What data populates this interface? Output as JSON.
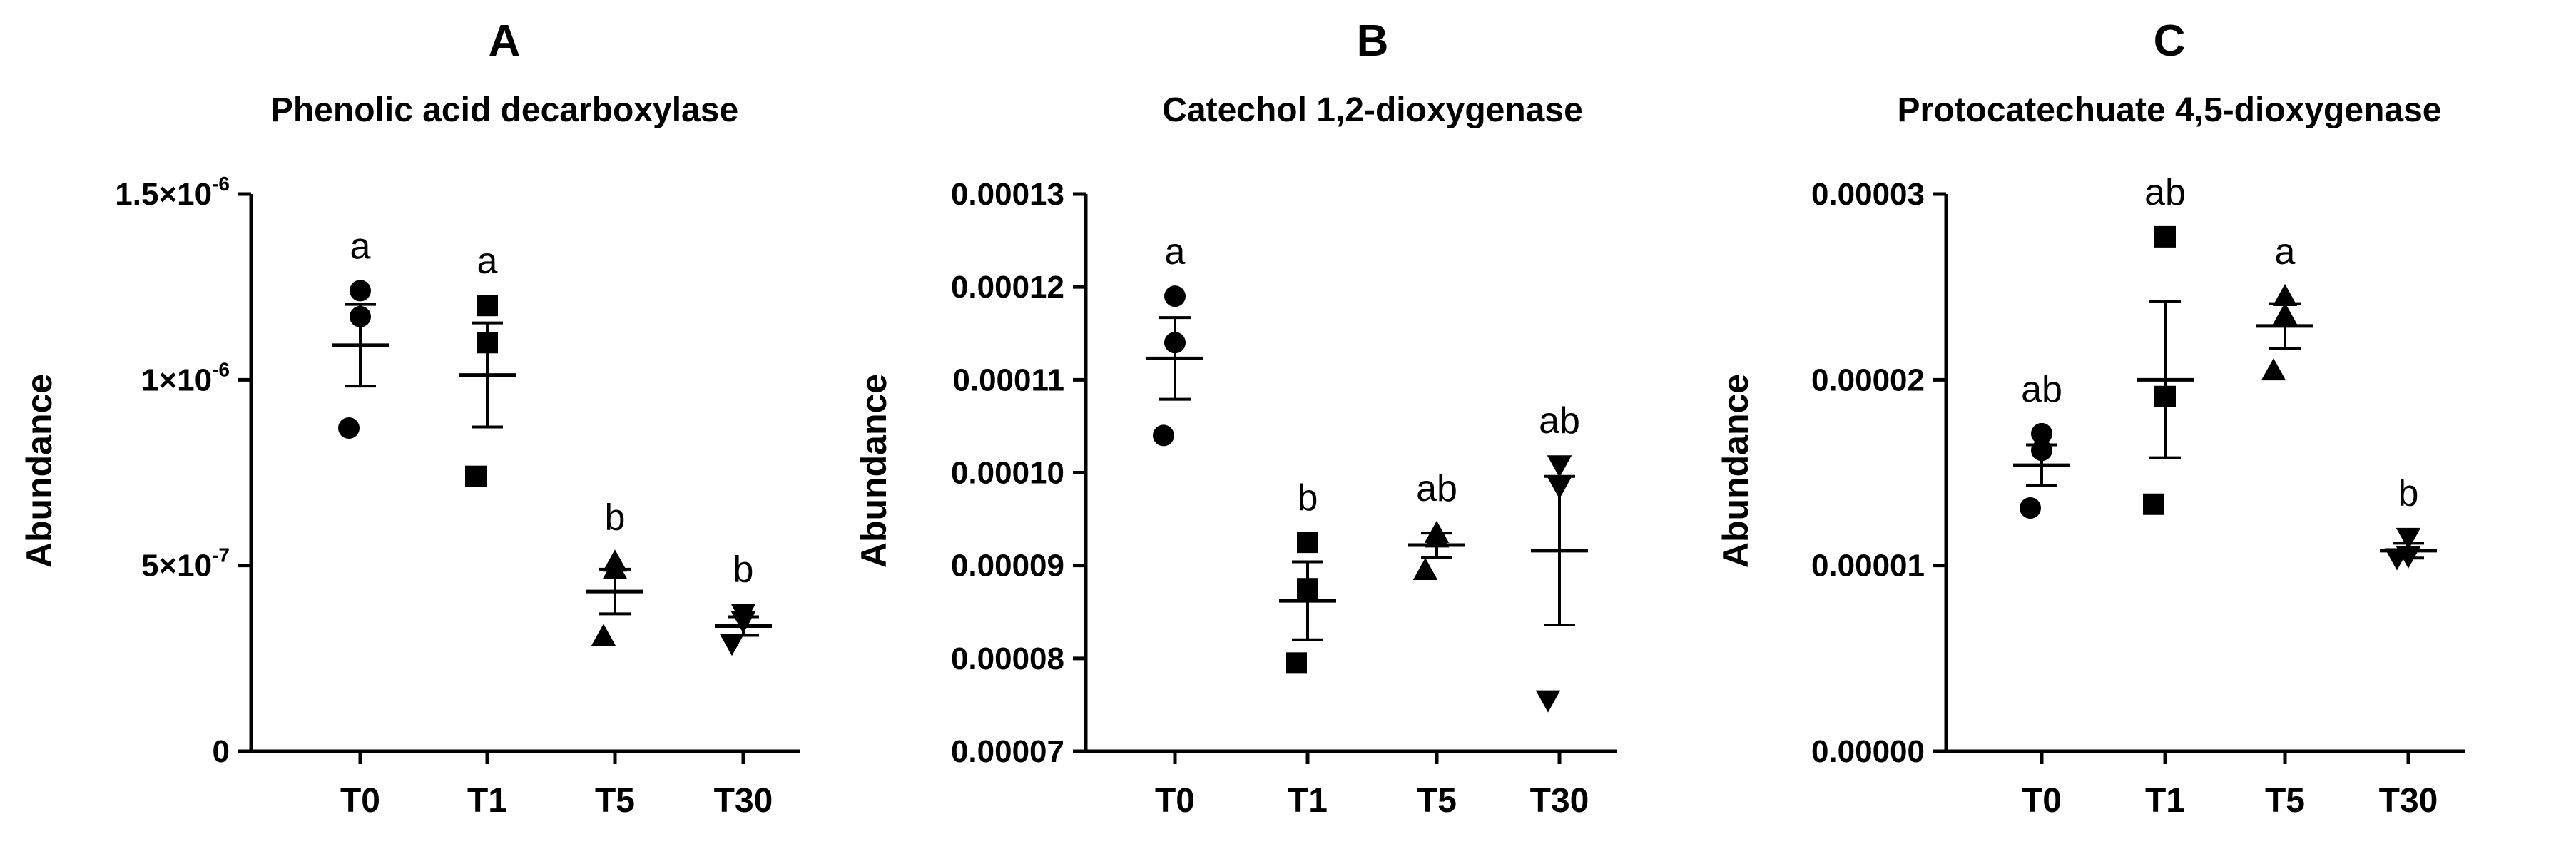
{
  "chart_data": [
    {
      "panel": "A",
      "type": "scatter",
      "title": "Phenolic acid decarboxylase",
      "xlabel": "",
      "ylabel": "Abundance",
      "categories": [
        "T0",
        "T1",
        "T5",
        "T30"
      ],
      "ylim": [
        0,
        1.5e-06
      ],
      "yticks": [
        {
          "value": 0,
          "label": "0"
        },
        {
          "value": 5e-07,
          "label": "5×10",
          "exp": "-7"
        },
        {
          "value": 1e-06,
          "label": "1×10",
          "exp": "-6"
        },
        {
          "value": 1.5e-06,
          "label": "1.5×10",
          "exp": "-6"
        }
      ],
      "markers": [
        "circle",
        "square",
        "triangle-up",
        "triangle-down"
      ],
      "groups": [
        {
          "label": "T0",
          "points": [
            1.24e-06,
            1.17e-06,
            8.7e-07
          ],
          "mean": 1.093e-06,
          "sem": 1.1e-07,
          "letter": "a"
        },
        {
          "label": "T1",
          "points": [
            1.2e-06,
            1.1e-06,
            7.4e-07
          ],
          "mean": 1.013e-06,
          "sem": 1.4e-07,
          "letter": "a"
        },
        {
          "label": "T5",
          "points": [
            5.1e-07,
            4.9e-07,
            3.1e-07
          ],
          "mean": 4.3e-07,
          "sem": 6e-08,
          "letter": "b"
        },
        {
          "label": "T30",
          "points": [
            3.7e-07,
            3.5e-07,
            2.9e-07
          ],
          "mean": 3.37e-07,
          "sem": 2.5e-08,
          "letter": "b"
        }
      ]
    },
    {
      "panel": "B",
      "type": "scatter",
      "title": "Catechol 1,2-dioxygenase",
      "xlabel": "",
      "ylabel": "Abundance",
      "categories": [
        "T0",
        "T1",
        "T5",
        "T30"
      ],
      "ylim": [
        7e-05,
        0.00013
      ],
      "yticks": [
        {
          "value": 7e-05,
          "label": "0.00007"
        },
        {
          "value": 8e-05,
          "label": "0.00008"
        },
        {
          "value": 9e-05,
          "label": "0.00009"
        },
        {
          "value": 0.0001,
          "label": "0.00010"
        },
        {
          "value": 0.00011,
          "label": "0.00011"
        },
        {
          "value": 0.00012,
          "label": "0.00012"
        },
        {
          "value": 0.00013,
          "label": "0.00013"
        }
      ],
      "markers": [
        "circle",
        "square",
        "triangle-up",
        "triangle-down"
      ],
      "groups": [
        {
          "label": "T0",
          "points": [
            0.000119,
            0.000114,
            0.000104
          ],
          "mean": 0.0001123,
          "sem": 4.4e-06,
          "letter": "a"
        },
        {
          "label": "T1",
          "points": [
            9.25e-05,
            8.75e-05,
            7.95e-05
          ],
          "mean": 8.62e-05,
          "sem": 4.2e-06,
          "letter": "b"
        },
        {
          "label": "T5",
          "points": [
            9.35e-05,
            9.3e-05,
            8.95e-05
          ],
          "mean": 9.22e-05,
          "sem": 1.3e-06,
          "letter": "ab"
        },
        {
          "label": "T30",
          "points": [
            0.0001008,
            9.85e-05,
            7.55e-05
          ],
          "mean": 9.16e-05,
          "sem": 8e-06,
          "letter": "ab"
        }
      ]
    },
    {
      "panel": "C",
      "type": "scatter",
      "title": "Protocatechuate 4,5-dioxygenase",
      "xlabel": "",
      "ylabel": "Abundance",
      "categories": [
        "T0",
        "T1",
        "T5",
        "T30"
      ],
      "ylim": [
        0,
        3e-05
      ],
      "yticks": [
        {
          "value": 0,
          "label": "0.00000"
        },
        {
          "value": 1e-05,
          "label": "0.00001"
        },
        {
          "value": 2e-05,
          "label": "0.00002"
        },
        {
          "value": 3e-05,
          "label": "0.00003"
        }
      ],
      "markers": [
        "circle",
        "square",
        "triangle-up",
        "triangle-down"
      ],
      "groups": [
        {
          "label": "T0",
          "points": [
            1.71e-05,
            1.62e-05,
            1.31e-05
          ],
          "mean": 1.54e-05,
          "sem": 1.1e-06,
          "letter": "ab"
        },
        {
          "label": "T1",
          "points": [
            2.77e-05,
            1.91e-05,
            1.33e-05
          ],
          "mean": 2e-05,
          "sem": 4.2e-06,
          "letter": "ab"
        },
        {
          "label": "T5",
          "points": [
            2.45e-05,
            2.35e-05,
            2.05e-05
          ],
          "mean": 2.29e-05,
          "sem": 1.2e-06,
          "letter": "a"
        },
        {
          "label": "T30",
          "points": [
            1.15e-05,
            1.05e-05,
            1.04e-05
          ],
          "mean": 1.08e-05,
          "sem": 4e-07,
          "letter": "b"
        }
      ]
    }
  ]
}
